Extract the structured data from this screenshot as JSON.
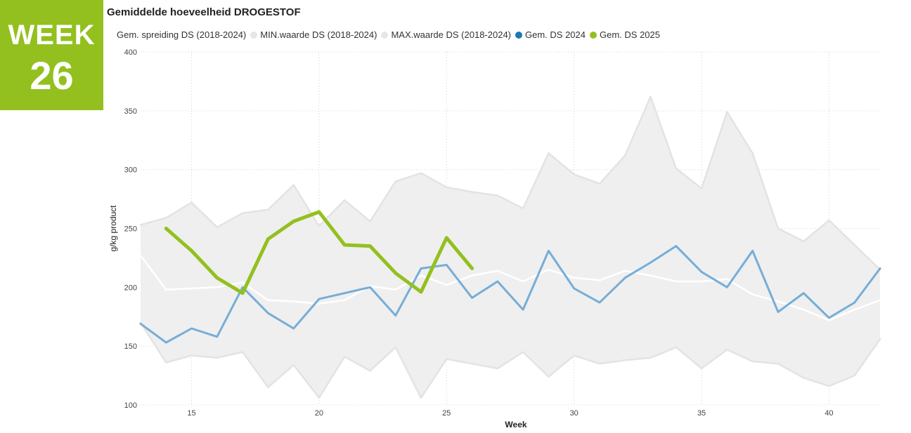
{
  "badge": {
    "line1": "WEEK",
    "line2": "26"
  },
  "chart_data": {
    "type": "line",
    "title": "Gemiddelde hoeveelheid DROGESTOF",
    "xlabel": "Week",
    "ylabel": "g/kg product",
    "xlim": [
      13,
      42
    ],
    "ylim": [
      100,
      400
    ],
    "xticks": [
      15,
      20,
      25,
      30,
      35,
      40
    ],
    "yticks": [
      100,
      150,
      200,
      250,
      300,
      350,
      400
    ],
    "grid": true,
    "legend_position": "top",
    "legend": [
      {
        "name": "Gem. spreiding DS (2018-2024)",
        "color": "#FFFFFF",
        "swatch": false
      },
      {
        "name": "MIN.waarde DS (2018-2024)",
        "color": "#E6E6E6",
        "swatch": true
      },
      {
        "name": "MAX.waarde DS (2018-2024)",
        "color": "#E6E6E6",
        "swatch": true
      },
      {
        "name": "Gem. DS 2024",
        "color": "#1F77B4",
        "swatch": true
      },
      {
        "name": "Gem. DS 2025",
        "color": "#93C01F",
        "swatch": true
      }
    ],
    "x": [
      13,
      14,
      15,
      16,
      17,
      18,
      19,
      20,
      21,
      22,
      23,
      24,
      25,
      26,
      27,
      28,
      29,
      30,
      31,
      32,
      33,
      34,
      35,
      36,
      37,
      38,
      39,
      40,
      41,
      42
    ],
    "series": [
      {
        "name": "MAX.waarde DS (2018-2024)",
        "color": "#E6E6E6",
        "values": [
          253,
          259,
          272,
          251,
          263,
          266,
          287,
          252,
          274,
          256,
          290,
          297,
          285,
          281,
          278,
          267,
          314,
          296,
          288,
          312,
          362,
          301,
          284,
          349,
          314,
          250,
          239,
          257,
          236,
          215
        ]
      },
      {
        "name": "MIN.waarde DS (2018-2024)",
        "color": "#E6E6E6",
        "values": [
          170,
          136,
          142,
          140,
          145,
          115,
          134,
          106,
          141,
          129,
          149,
          106,
          139,
          135,
          131,
          145,
          124,
          142,
          135,
          138,
          140,
          149,
          131,
          147,
          137,
          135,
          123,
          116,
          125,
          156
        ]
      },
      {
        "name": "Gem. spreiding DS (2018-2024)",
        "color": "#FFFFFF",
        "values": [
          227,
          198,
          199,
          200,
          204,
          189,
          188,
          186,
          189,
          201,
          198,
          210,
          202,
          210,
          214,
          205,
          215,
          208,
          206,
          214,
          210,
          205,
          205,
          207,
          194,
          188,
          181,
          172,
          181,
          189
        ]
      },
      {
        "name": "Gem. DS 2024",
        "color": "#76ADD6",
        "values": [
          169,
          153,
          165,
          158,
          200,
          178,
          165,
          190,
          195,
          200,
          176,
          216,
          219,
          191,
          205,
          181,
          231,
          199,
          187,
          208,
          221,
          235,
          213,
          200,
          231,
          179,
          195,
          174,
          187,
          216
        ]
      },
      {
        "name": "Gem. DS 2025",
        "color": "#93C01F",
        "x": [
          14,
          15,
          16,
          17,
          18,
          19,
          20,
          21,
          22,
          23,
          24,
          25,
          26
        ],
        "values": [
          250,
          231,
          208,
          195,
          241,
          256,
          264,
          236,
          235,
          212,
          196,
          242,
          216
        ]
      }
    ]
  }
}
